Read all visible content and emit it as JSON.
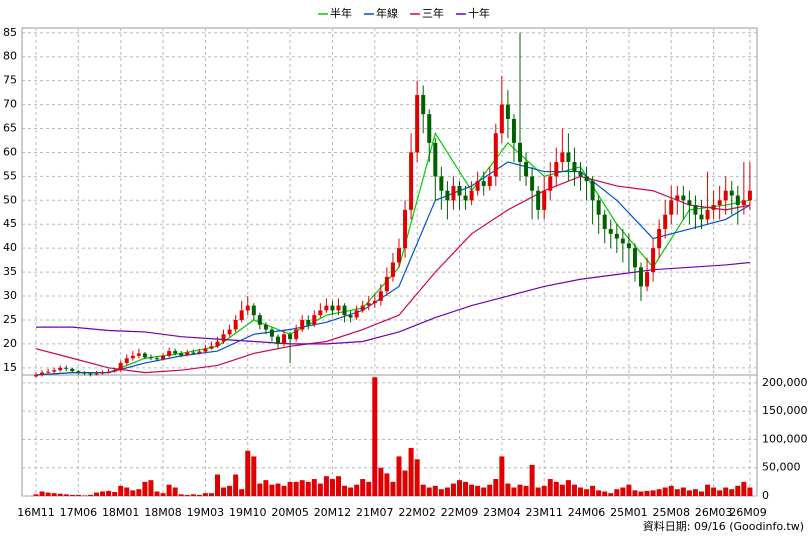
{
  "chart_data": {
    "type": "candlestick",
    "footer": "資料日期: 09/16 (Goodinfo.tw)",
    "up_color": "#e00000",
    "down_color": "#006000",
    "volume_color": "#e00000",
    "grid": true,
    "categories": [
      "16M11",
      null,
      null,
      null,
      null,
      null,
      null,
      "17M06",
      null,
      null,
      null,
      null,
      null,
      null,
      "18M01",
      null,
      null,
      null,
      null,
      null,
      null,
      "18M08",
      null,
      null,
      null,
      null,
      null,
      null,
      "19M03",
      null,
      null,
      null,
      null,
      null,
      null,
      "19M10",
      null,
      null,
      null,
      null,
      null,
      null,
      "20M05",
      null,
      null,
      null,
      null,
      null,
      null,
      "20M12",
      null,
      null,
      null,
      null,
      null,
      null,
      "21M07",
      null,
      null,
      null,
      null,
      null,
      null,
      "22M02",
      null,
      null,
      null,
      null,
      null,
      null,
      "22M09",
      null,
      null,
      null,
      null,
      null,
      null,
      "23M04",
      null,
      null,
      null,
      null,
      null,
      null,
      "23M11",
      null,
      null,
      null,
      null,
      null,
      null,
      "24M06",
      null,
      null,
      null,
      null,
      null,
      null,
      "25M01",
      null,
      null,
      null,
      null,
      null,
      null,
      "25M08",
      null,
      null,
      null,
      null,
      null,
      null,
      "26M03",
      null,
      null,
      null,
      null,
      null,
      "26M09"
    ],
    "open": [
      13.2,
      13.5,
      14,
      14.2,
      14.5,
      15,
      14.8,
      14.3,
      14,
      13.8,
      13.6,
      13.8,
      14,
      14.2,
      14.5,
      16,
      17,
      17.5,
      18,
      17.2,
      17,
      16.8,
      17.5,
      18.5,
      18,
      17.6,
      18.2,
      18,
      18.4,
      19,
      19.5,
      20.5,
      22,
      23,
      25,
      27,
      28,
      26,
      24,
      23,
      21.5,
      20,
      22,
      21,
      23,
      25,
      24,
      26,
      27,
      28,
      27,
      28,
      26,
      25.5,
      27,
      28,
      28.5,
      29,
      31,
      34,
      37,
      40,
      48,
      60,
      72,
      68,
      62,
      55,
      52,
      50,
      53,
      51,
      50,
      52,
      54,
      53,
      55,
      64,
      70,
      67,
      62,
      58,
      55,
      52,
      48,
      52,
      55,
      58,
      60,
      58,
      56,
      55,
      54,
      50,
      47,
      44,
      43,
      42,
      41,
      40,
      36,
      32,
      35,
      40,
      44,
      47,
      50,
      51,
      50,
      49,
      47,
      46,
      48,
      49,
      50,
      52,
      51,
      49,
      50
    ],
    "high": [
      14,
      14.5,
      14.8,
      15,
      15.5,
      15.5,
      15,
      14.5,
      14.3,
      14,
      14.3,
      14.5,
      14.8,
      15,
      16.5,
      17.8,
      18.5,
      19,
      18.3,
      17.8,
      17.5,
      18,
      19.2,
      19,
      18.5,
      18.8,
      18.8,
      19,
      19.8,
      20.5,
      21.5,
      23,
      24,
      26,
      29,
      30,
      28.5,
      26.5,
      24.5,
      23.5,
      22,
      23,
      22.5,
      24,
      26,
      26,
      27,
      28.5,
      29.5,
      29,
      29.5,
      28.5,
      27,
      28,
      29,
      30,
      30.5,
      32.5,
      36,
      39,
      42,
      50,
      64,
      75,
      74,
      69,
      63,
      57,
      54,
      55,
      54,
      53,
      54,
      56,
      56,
      57,
      66,
      76,
      73,
      68,
      85,
      60,
      57,
      53,
      55,
      58,
      61,
      65,
      64,
      61,
      58,
      57,
      55,
      51,
      48,
      46,
      45,
      44,
      43,
      41,
      37,
      38,
      42,
      46,
      50,
      53,
      53,
      53,
      52,
      51,
      50,
      56,
      52,
      53,
      55,
      54,
      53,
      58,
      58
    ],
    "low": [
      13,
      13.2,
      13.6,
      13.9,
      14.2,
      14.3,
      13.9,
      13.6,
      13.4,
      13.2,
      13.4,
      13.6,
      13.8,
      14,
      14.2,
      15.5,
      16.5,
      17,
      16.8,
      16.6,
      16.4,
      16.6,
      17.2,
      17.6,
      17.2,
      17.4,
      17.7,
      17.8,
      18.2,
      18.8,
      19.2,
      20,
      21.5,
      22.5,
      24.5,
      26,
      25,
      23,
      22,
      20.5,
      19,
      19.5,
      16,
      20.5,
      22.5,
      23,
      23.5,
      25.5,
      26.5,
      26,
      26,
      24.5,
      24.5,
      25,
      26.5,
      27,
      27.5,
      28,
      30,
      33,
      36,
      38,
      46,
      58,
      64,
      58,
      50,
      48,
      46,
      48,
      48,
      48,
      49,
      51,
      51,
      52,
      53,
      62,
      63,
      58,
      54,
      53,
      46,
      46,
      46,
      50,
      53,
      56,
      54,
      53,
      52,
      50,
      45,
      43,
      41,
      40,
      39,
      37,
      35,
      33,
      29,
      31,
      33,
      38,
      42,
      45,
      47,
      46,
      45,
      44,
      44,
      45,
      46,
      46,
      47,
      47,
      45,
      47,
      48
    ],
    "close": [
      13.5,
      14,
      14.2,
      14.5,
      15,
      14.8,
      14.3,
      14,
      13.8,
      13.6,
      13.8,
      14,
      14.2,
      14.5,
      16,
      17,
      17.5,
      18,
      17.2,
      17,
      16.8,
      17.5,
      18.5,
      18,
      17.6,
      18.2,
      18,
      18.4,
      19,
      19.5,
      20.5,
      22,
      23,
      25,
      27,
      28,
      26,
      24,
      23,
      21.5,
      20,
      22,
      21,
      23,
      25,
      24,
      26,
      27,
      28,
      27,
      28,
      26,
      25.5,
      27,
      28,
      28.5,
      29,
      31,
      34,
      37,
      40,
      48,
      60,
      72,
      68,
      62,
      55,
      52,
      50,
      53,
      51,
      50,
      52,
      54,
      53,
      55,
      64,
      70,
      67,
      62,
      58,
      55,
      52,
      48,
      52,
      55,
      58,
      60,
      58,
      56,
      55,
      54,
      50,
      47,
      44,
      43,
      42,
      41,
      40,
      36,
      32,
      35,
      40,
      44,
      47,
      50,
      51,
      50,
      49,
      47,
      46,
      48,
      49,
      50,
      52,
      51,
      49,
      50,
      52
    ],
    "ylim": [
      13.5,
      86
    ],
    "yticks": [
      15,
      20,
      25,
      30,
      35,
      40,
      45,
      50,
      55,
      60,
      65,
      70,
      75,
      80,
      85
    ],
    "series": [
      {
        "name": "半年",
        "color": "#00cc00",
        "x": [
          0,
          6,
          12,
          18,
          24,
          30,
          36,
          42,
          48,
          54,
          60,
          66,
          72,
          78,
          84,
          90,
          96,
          102,
          108,
          114,
          118
        ],
        "values": [
          13.5,
          14,
          14,
          17,
          18,
          19.5,
          25,
          22,
          26,
          27.5,
          36,
          64,
          52,
          62,
          55,
          57,
          45,
          36,
          48,
          49,
          50
        ]
      },
      {
        "name": "年線",
        "color": "#0050d0",
        "x": [
          0,
          6,
          12,
          18,
          24,
          30,
          36,
          42,
          48,
          54,
          60,
          66,
          72,
          78,
          84,
          90,
          96,
          102,
          108,
          114,
          118
        ],
        "values": [
          13.5,
          14,
          14,
          16,
          17.5,
          18.5,
          22,
          23,
          24.5,
          27,
          32,
          50,
          53,
          58,
          56,
          56,
          50,
          42,
          44,
          46,
          49
        ]
      },
      {
        "name": "三年",
        "color": "#d0005a",
        "x": [
          0,
          6,
          12,
          18,
          24,
          30,
          36,
          42,
          48,
          54,
          60,
          66,
          72,
          78,
          84,
          90,
          96,
          102,
          108,
          114,
          118
        ],
        "values": [
          19,
          17,
          15,
          14,
          14.5,
          15.5,
          18,
          19.5,
          20.5,
          23,
          26,
          35,
          43,
          48,
          52,
          55,
          53,
          52,
          49,
          48,
          49
        ]
      },
      {
        "name": "十年",
        "color": "#7000b0",
        "x": [
          0,
          6,
          12,
          18,
          24,
          30,
          36,
          42,
          48,
          54,
          60,
          66,
          72,
          78,
          84,
          90,
          96,
          102,
          108,
          114,
          118
        ],
        "values": [
          23.5,
          23.5,
          22.8,
          22.5,
          21.5,
          21,
          20.5,
          20,
          20,
          20.5,
          22.5,
          25.5,
          28,
          30,
          32,
          33.5,
          34.5,
          35.5,
          36,
          36.5,
          37
        ]
      }
    ],
    "volume": {
      "values": [
        3000,
        8000,
        6000,
        5000,
        4000,
        3000,
        2000,
        2000,
        1000,
        2000,
        6000,
        8000,
        9000,
        7000,
        18000,
        15000,
        10000,
        12000,
        25000,
        28000,
        8000,
        5000,
        20000,
        15000,
        3000,
        2000,
        3000,
        2000,
        5000,
        5000,
        38000,
        15000,
        18000,
        38000,
        12000,
        80000,
        70000,
        22000,
        28000,
        20000,
        22000,
        18000,
        25000,
        25000,
        28000,
        25000,
        30000,
        22000,
        35000,
        30000,
        35000,
        18000,
        15000,
        20000,
        30000,
        25000,
        210000,
        50000,
        40000,
        25000,
        70000,
        45000,
        85000,
        65000,
        20000,
        15000,
        18000,
        12000,
        15000,
        22000,
        28000,
        25000,
        20000,
        18000,
        15000,
        20000,
        30000,
        70000,
        22000,
        15000,
        20000,
        18000,
        55000,
        15000,
        18000,
        30000,
        25000,
        20000,
        28000,
        20000,
        15000,
        12000,
        18000,
        10000,
        8000,
        5000,
        12000,
        15000,
        20000,
        10000,
        8000,
        9000,
        10000,
        12000,
        15000,
        18000,
        12000,
        15000,
        10000,
        12000,
        8000,
        20000,
        15000,
        10000,
        15000,
        12000,
        18000,
        25000,
        15000
      ],
      "ylim": [
        0,
        214000
      ],
      "yticks": [
        0,
        {
          "value": 50000,
          "label": "50,000"
        },
        {
          "value": 100000,
          "label": "100,000"
        },
        {
          "value": 150000,
          "label": "150,000"
        },
        {
          "value": 200000,
          "label": "200,000"
        }
      ]
    }
  }
}
